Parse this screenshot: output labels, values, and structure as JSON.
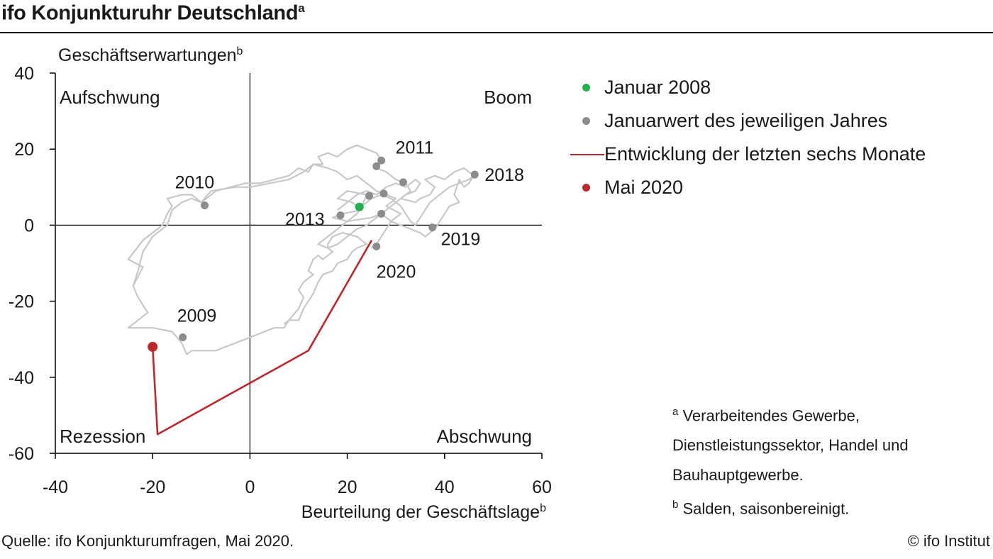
{
  "title": "ifo Konjunkturuhr Deutschland",
  "title_sup": "a",
  "legend": [
    {
      "kind": "dot",
      "color": "#22b14c",
      "label": "Januar 2008"
    },
    {
      "kind": "dot",
      "color": "#8c8c8c",
      "label": "Januarwert des jeweiligen Jahres"
    },
    {
      "kind": "line",
      "color": "#c0272d",
      "label": "Entwicklung der letzten sechs Monate"
    },
    {
      "kind": "dot",
      "color": "#c0272d",
      "label": "Mai 2020"
    }
  ],
  "footnotes": {
    "a_mark": "a",
    "a_text": "Verarbeitendes  Gewerbe, Dienstleistungssektor,  Handel und Bauhauptgewerbe.",
    "b_mark": "b",
    "b_text": "Salden, saisonbereinigt."
  },
  "source": "Quelle:  ifo Konjunkturumfragen,  Mai 2020.",
  "copyright": "© ifo Institut",
  "chart_data": {
    "type": "scatter",
    "xlabel": "Beurteilung der Geschäftslage",
    "xlabel_sup": "b",
    "ylabel": "Geschäftserwartungen",
    "ylabel_sup": "b",
    "xlim": [
      -40,
      60
    ],
    "ylim": [
      -60,
      40
    ],
    "xticks": [
      -40,
      -20,
      0,
      20,
      40,
      60
    ],
    "yticks": [
      40,
      20,
      0,
      -20,
      -40,
      -60
    ],
    "xtick_labels": [
      "-40",
      "-20",
      "0",
      "20",
      "40",
      "60"
    ],
    "ytick_labels": [
      "40",
      "20",
      "0",
      "-20",
      "-40",
      "-60"
    ],
    "quadrants": {
      "top_left": "Aufschwung",
      "top_right": "Boom",
      "bottom_left": "Rezession",
      "bottom_right": "Abschwung"
    },
    "history_path": [
      [
        23,
        5
      ],
      [
        24,
        8
      ],
      [
        20,
        9
      ],
      [
        18,
        7
      ],
      [
        21,
        6
      ],
      [
        23,
        4
      ],
      [
        19,
        3
      ],
      [
        17,
        2
      ],
      [
        20,
        1
      ],
      [
        25,
        2
      ],
      [
        27,
        3
      ],
      [
        29,
        1
      ],
      [
        31,
        3
      ],
      [
        28,
        5
      ],
      [
        30,
        7
      ],
      [
        26,
        9
      ],
      [
        24,
        11
      ],
      [
        22,
        13
      ],
      [
        20,
        12
      ],
      [
        18,
        14
      ],
      [
        16,
        15
      ],
      [
        13,
        16
      ],
      [
        12,
        14
      ],
      [
        10,
        15
      ],
      [
        8,
        13
      ],
      [
        5,
        12
      ],
      [
        2,
        11
      ],
      [
        -1,
        11
      ],
      [
        -4,
        10
      ],
      [
        -7,
        9
      ],
      [
        -10,
        6
      ],
      [
        -12,
        7
      ],
      [
        -14,
        6
      ],
      [
        -16,
        4
      ],
      [
        -17,
        0
      ],
      [
        -20,
        -3
      ],
      [
        -22,
        -7
      ],
      [
        -23,
        -12
      ],
      [
        -24,
        -16
      ],
      [
        -23,
        -19
      ],
      [
        -21,
        -23
      ],
      [
        -23,
        -25
      ],
      [
        -25,
        -27
      ],
      [
        -20,
        -27
      ],
      [
        -16,
        -28
      ],
      [
        -14,
        -31
      ],
      [
        -13,
        -34
      ],
      [
        -12,
        -33
      ],
      [
        -9,
        -33
      ],
      [
        -7,
        -33
      ],
      [
        -5,
        -32
      ],
      [
        -3,
        -31
      ],
      [
        -1,
        -30
      ],
      [
        1,
        -29
      ],
      [
        3,
        -28
      ],
      [
        5,
        -27
      ],
      [
        7,
        -27
      ],
      [
        8,
        -25
      ],
      [
        10,
        -25
      ],
      [
        11,
        -22
      ],
      [
        12,
        -20
      ],
      [
        13,
        -18
      ],
      [
        14,
        -15
      ],
      [
        15,
        -13
      ],
      [
        17,
        -12
      ],
      [
        18,
        -10
      ],
      [
        20,
        -9
      ],
      [
        21,
        -7
      ],
      [
        22,
        -6
      ],
      [
        24,
        -5
      ],
      [
        22,
        -3
      ],
      [
        19,
        -2
      ],
      [
        17,
        -3
      ],
      [
        16,
        -5
      ],
      [
        16,
        -6
      ],
      [
        17,
        -7
      ],
      [
        16,
        -8
      ],
      [
        15,
        -9
      ],
      [
        14,
        -8
      ],
      [
        13,
        -9
      ],
      [
        12,
        -12
      ],
      [
        13,
        -13
      ],
      [
        11,
        -15
      ],
      [
        10,
        -17
      ],
      [
        11,
        -19
      ],
      [
        10,
        -22
      ],
      [
        8,
        -25
      ],
      [
        7,
        -26
      ]
    ],
    "history_path_2": [
      [
        -24,
        -16
      ],
      [
        -22,
        -11
      ],
      [
        -25,
        -9
      ],
      [
        -22,
        -4
      ],
      [
        -20,
        -2
      ],
      [
        -18,
        0
      ],
      [
        -17,
        3
      ],
      [
        -16,
        5
      ],
      [
        -17,
        7
      ],
      [
        -14,
        8
      ],
      [
        -12,
        8
      ],
      [
        -10,
        6
      ],
      [
        -8,
        9
      ],
      [
        -3,
        10
      ],
      [
        0,
        10
      ],
      [
        4,
        11
      ],
      [
        8,
        12
      ],
      [
        11,
        14
      ],
      [
        13,
        16
      ],
      [
        15,
        16
      ],
      [
        14,
        18
      ],
      [
        16,
        19
      ],
      [
        18,
        18
      ],
      [
        20,
        20
      ],
      [
        22,
        21
      ],
      [
        24,
        20
      ],
      [
        26,
        19
      ],
      [
        27,
        17
      ],
      [
        26,
        15
      ],
      [
        28,
        14
      ],
      [
        30,
        12
      ],
      [
        32,
        11
      ],
      [
        33,
        9
      ],
      [
        31,
        7
      ],
      [
        34,
        6
      ],
      [
        35,
        7
      ],
      [
        37,
        8
      ],
      [
        38,
        10
      ],
      [
        36,
        12
      ],
      [
        38,
        13
      ],
      [
        40,
        12
      ],
      [
        42,
        14
      ],
      [
        44,
        15
      ],
      [
        46,
        13
      ],
      [
        45,
        11
      ],
      [
        44,
        10
      ],
      [
        43,
        12
      ],
      [
        42,
        8
      ],
      [
        43,
        6
      ],
      [
        41,
        5
      ],
      [
        40,
        3
      ],
      [
        39,
        1
      ],
      [
        38,
        -1
      ],
      [
        37,
        -2
      ],
      [
        36,
        -3
      ],
      [
        35,
        -2
      ],
      [
        33,
        -1
      ],
      [
        31,
        0
      ],
      [
        29,
        1
      ],
      [
        28,
        -1
      ],
      [
        27,
        -3
      ],
      [
        26,
        -5
      ],
      [
        25,
        -6
      ]
    ],
    "history_path_3": [
      [
        18,
        4
      ],
      [
        20,
        6
      ],
      [
        22,
        8
      ],
      [
        24,
        9
      ],
      [
        26,
        8
      ],
      [
        28,
        10
      ],
      [
        30,
        11
      ],
      [
        32,
        10
      ],
      [
        34,
        12
      ],
      [
        35,
        11
      ],
      [
        34,
        9
      ],
      [
        32,
        8
      ],
      [
        30,
        6
      ],
      [
        28,
        4
      ],
      [
        26,
        2
      ],
      [
        24,
        0
      ],
      [
        22,
        -1
      ],
      [
        20,
        -3
      ],
      [
        18,
        -5
      ],
      [
        16,
        -6
      ],
      [
        14,
        -5
      ],
      [
        16,
        -3
      ],
      [
        18,
        -1
      ],
      [
        20,
        1
      ],
      [
        22,
        3
      ],
      [
        23,
        5
      ],
      [
        25,
        7
      ],
      [
        27,
        8
      ],
      [
        29,
        7
      ],
      [
        31,
        5
      ],
      [
        32,
        3
      ],
      [
        33,
        1
      ],
      [
        34,
        0
      ],
      [
        35,
        2
      ],
      [
        36,
        4
      ],
      [
        37,
        6
      ],
      [
        39,
        8
      ],
      [
        41,
        10
      ],
      [
        43,
        11
      ],
      [
        45,
        12
      ],
      [
        46,
        13
      ]
    ],
    "recent_path": [
      [
        25,
        -4
      ],
      [
        12,
        -33
      ],
      [
        -19,
        -55
      ],
      [
        -20,
        -32
      ]
    ],
    "january_2008": [
      22.5,
      4.8
    ],
    "january_points": [
      {
        "label": "2009",
        "x": -13.8,
        "y": -29.5,
        "show_label": true
      },
      {
        "label": "2010",
        "x": -9.3,
        "y": 5.2,
        "show_label": true
      },
      {
        "label": "2011",
        "x": 27,
        "y": 17,
        "show_label": true
      },
      {
        "label": "",
        "x": 26,
        "y": 15.5,
        "show_label": false
      },
      {
        "label": "",
        "x": 24.5,
        "y": 7.7,
        "show_label": false
      },
      {
        "label": "",
        "x": 27.5,
        "y": 8.3,
        "show_label": false
      },
      {
        "label": "",
        "x": 31.5,
        "y": 11.3,
        "show_label": false
      },
      {
        "label": "",
        "x": 27,
        "y": 3,
        "show_label": false
      },
      {
        "label": "2013",
        "x": 18.6,
        "y": 2.6,
        "show_label": true
      },
      {
        "label": "2018",
        "x": 46.2,
        "y": 13.3,
        "show_label": true
      },
      {
        "label": "2019",
        "x": 37.5,
        "y": -0.6,
        "show_label": true
      },
      {
        "label": "2020",
        "x": 26,
        "y": -5.6,
        "show_label": true
      }
    ],
    "may_2020": [
      -20,
      -32
    ]
  }
}
